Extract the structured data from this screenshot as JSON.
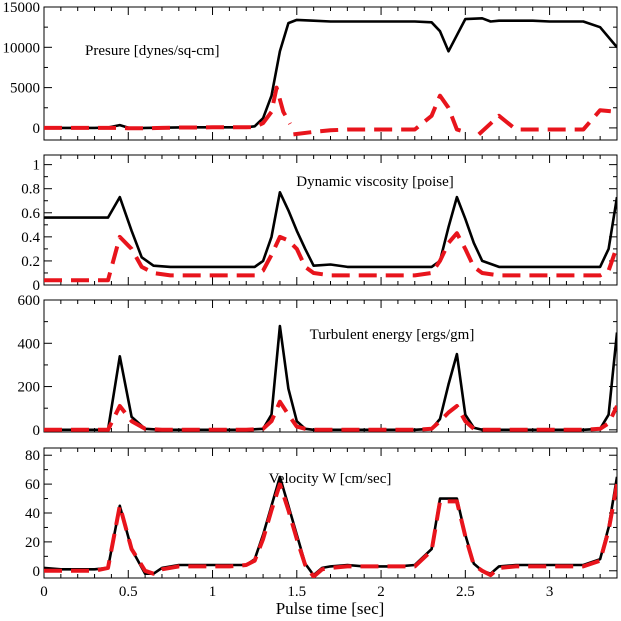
{
  "chart_data": {
    "type": "line",
    "xlabel": "Pulse time [sec]",
    "xlim": [
      0,
      3.4
    ],
    "x_ticks": [
      0,
      0.5,
      1,
      1.5,
      2,
      2.5,
      3
    ],
    "x_tick_labels": [
      "0",
      "0.5",
      "1",
      "1.5",
      "2",
      "2.5",
      "3"
    ],
    "series_styles": [
      {
        "name": "solid",
        "color": "#000000",
        "dash": "none"
      },
      {
        "name": "dashed",
        "color": "#e8141c",
        "dash": "18,9"
      }
    ],
    "panels": [
      {
        "title": "Presure [dynes/sq-cm]",
        "ylim": [
          -1500,
          15000
        ],
        "y_ticks": [
          0,
          5000,
          10000,
          15000
        ],
        "y_tick_labels": [
          "0",
          "5000",
          "10000",
          "15000"
        ],
        "series": [
          {
            "name": "solid",
            "x": [
              0,
              0.1,
              0.2,
              0.3,
              0.38,
              0.45,
              0.52,
              0.6,
              0.7,
              0.8,
              0.9,
              1.0,
              1.1,
              1.2,
              1.25,
              1.3,
              1.35,
              1.4,
              1.45,
              1.5,
              1.6,
              1.7,
              1.8,
              1.9,
              2.0,
              2.1,
              2.2,
              2.3,
              2.35,
              2.4,
              2.45,
              2.5,
              2.6,
              2.65,
              2.7,
              2.8,
              2.9,
              3.0,
              3.1,
              3.2,
              3.3,
              3.4
            ],
            "y": [
              0,
              0,
              0,
              0,
              50,
              350,
              -100,
              0,
              30,
              60,
              80,
              80,
              80,
              80,
              200,
              1200,
              4000,
              9500,
              13000,
              13400,
              13300,
              13200,
              13200,
              13200,
              13200,
              13200,
              13200,
              13100,
              12000,
              9500,
              11500,
              13500,
              13600,
              13200,
              13300,
              13300,
              13300,
              13200,
              13200,
              13200,
              12500,
              10000
            ]
          },
          {
            "name": "dashed",
            "x": [
              0,
              0.1,
              0.2,
              0.3,
              0.38,
              0.45,
              0.5,
              0.52,
              0.6,
              0.7,
              0.8,
              0.9,
              1.0,
              1.1,
              1.2,
              1.25,
              1.3,
              1.35,
              1.38,
              1.42,
              1.46
            ],
            "y": [
              0,
              0,
              0,
              0,
              0,
              0,
              -50,
              -50,
              -50,
              0,
              50,
              50,
              80,
              80,
              80,
              100,
              600,
              2000,
              5000,
              2000,
              500
            ]
          },
          {
            "name": "dashed",
            "x": [
              1.48,
              1.6,
              1.7,
              1.8,
              1.9,
              2.0,
              2.1,
              2.2,
              2.3,
              2.35,
              2.4,
              2.45,
              2.5
            ],
            "y": [
              -800,
              -500,
              -300,
              -200,
              -200,
              -200,
              -200,
              -200,
              1500,
              4000,
              2500,
              -200,
              -500
            ]
          },
          {
            "name": "dashed",
            "x": [
              2.58,
              2.7,
              2.8,
              2.9,
              3.0,
              3.1,
              3.2,
              3.3,
              3.4
            ],
            "y": [
              -800,
              1500,
              -200,
              -200,
              -200,
              -200,
              -200,
              2200,
              2000
            ]
          }
        ]
      },
      {
        "title": "Dynamic viscosity [poise]",
        "ylim": [
          0,
          1.08
        ],
        "y_ticks": [
          0,
          0.2,
          0.4,
          0.6,
          0.8,
          1
        ],
        "y_tick_labels": [
          "0",
          "0.2",
          "0.4",
          "0.6",
          "0.8",
          "1"
        ],
        "series": [
          {
            "name": "solid",
            "x": [
              0,
              0.1,
              0.2,
              0.3,
              0.38,
              0.45,
              0.52,
              0.58,
              0.65,
              0.75,
              0.85,
              0.95,
              1.05,
              1.15,
              1.25,
              1.3,
              1.35,
              1.4,
              1.45,
              1.5,
              1.55,
              1.6,
              1.7,
              1.8,
              1.9,
              2.0,
              2.1,
              2.2,
              2.3,
              2.35,
              2.4,
              2.45,
              2.5,
              2.55,
              2.6,
              2.7,
              2.8,
              2.9,
              3.0,
              3.1,
              3.2,
              3.3,
              3.35,
              3.4
            ],
            "y": [
              0.56,
              0.56,
              0.56,
              0.56,
              0.56,
              0.73,
              0.45,
              0.23,
              0.16,
              0.15,
              0.15,
              0.15,
              0.15,
              0.15,
              0.15,
              0.2,
              0.4,
              0.77,
              0.62,
              0.45,
              0.3,
              0.16,
              0.17,
              0.15,
              0.15,
              0.15,
              0.15,
              0.15,
              0.15,
              0.2,
              0.48,
              0.73,
              0.55,
              0.35,
              0.2,
              0.15,
              0.15,
              0.15,
              0.15,
              0.15,
              0.15,
              0.15,
              0.3,
              0.73
            ]
          },
          {
            "name": "dashed",
            "x": [
              0,
              0.1,
              0.2,
              0.3,
              0.38,
              0.45,
              0.52,
              0.58,
              0.65,
              0.75,
              0.85,
              0.95,
              1.05,
              1.15,
              1.25,
              1.3,
              1.35,
              1.4,
              1.45,
              1.5,
              1.55,
              1.6,
              1.7,
              1.8,
              1.9,
              2.0,
              2.1,
              2.2,
              2.3,
              2.35,
              2.4,
              2.45,
              2.5,
              2.55,
              2.6,
              2.7,
              2.8,
              2.9,
              3.0,
              3.1,
              3.2,
              3.3,
              3.35,
              3.4
            ],
            "y": [
              0.04,
              0.04,
              0.04,
              0.04,
              0.04,
              0.4,
              0.3,
              0.15,
              0.1,
              0.08,
              0.08,
              0.08,
              0.08,
              0.08,
              0.08,
              0.12,
              0.25,
              0.4,
              0.37,
              0.3,
              0.15,
              0.1,
              0.08,
              0.08,
              0.08,
              0.08,
              0.08,
              0.08,
              0.1,
              0.2,
              0.35,
              0.43,
              0.3,
              0.15,
              0.1,
              0.08,
              0.08,
              0.08,
              0.08,
              0.08,
              0.08,
              0.08,
              0.12,
              0.32
            ]
          }
        ]
      },
      {
        "title": "Turbulent energy [ergs/gm]",
        "ylim": [
          -10,
          600
        ],
        "y_ticks": [
          0,
          200,
          400,
          600
        ],
        "y_tick_labels": [
          "0",
          "200",
          "400",
          "600"
        ],
        "series": [
          {
            "name": "solid",
            "x": [
              0,
              0.1,
              0.2,
              0.3,
              0.38,
              0.45,
              0.52,
              0.6,
              0.7,
              0.8,
              0.9,
              1.0,
              1.1,
              1.2,
              1.3,
              1.35,
              1.4,
              1.45,
              1.5,
              1.55,
              1.6,
              1.7,
              1.8,
              1.9,
              2.0,
              2.1,
              2.2,
              2.3,
              2.35,
              2.4,
              2.45,
              2.5,
              2.55,
              2.6,
              2.7,
              2.8,
              2.9,
              3.0,
              3.1,
              3.2,
              3.3,
              3.35,
              3.4
            ],
            "y": [
              0,
              0,
              0,
              0,
              0,
              340,
              60,
              5,
              0,
              0,
              0,
              0,
              0,
              0,
              5,
              70,
              480,
              190,
              40,
              5,
              0,
              0,
              0,
              0,
              0,
              0,
              0,
              5,
              50,
              210,
              350,
              70,
              10,
              0,
              0,
              0,
              0,
              0,
              0,
              0,
              5,
              70,
              450
            ]
          },
          {
            "name": "dashed",
            "x": [
              0,
              0.1,
              0.2,
              0.3,
              0.38,
              0.45,
              0.52,
              0.6,
              0.7,
              0.8,
              0.9,
              1.0,
              1.1,
              1.2,
              1.3,
              1.35,
              1.4,
              1.45,
              1.5,
              1.55,
              1.6,
              1.7,
              1.8,
              1.9,
              2.0,
              2.1,
              2.2,
              2.3,
              2.35,
              2.4,
              2.45,
              2.5,
              2.55,
              2.6,
              2.7,
              2.8,
              2.9,
              3.0,
              3.1,
              3.2,
              3.3,
              3.35,
              3.4
            ],
            "y": [
              0,
              0,
              0,
              0,
              0,
              110,
              40,
              5,
              0,
              0,
              0,
              0,
              0,
              0,
              5,
              40,
              130,
              70,
              15,
              5,
              0,
              0,
              0,
              0,
              0,
              0,
              0,
              5,
              40,
              80,
              110,
              40,
              5,
              0,
              0,
              0,
              0,
              0,
              0,
              0,
              5,
              30,
              110
            ]
          }
        ]
      },
      {
        "title": "Velocity W [cm/sec]",
        "ylim": [
          -5,
          85
        ],
        "y_ticks": [
          0,
          20,
          40,
          60,
          80
        ],
        "y_tick_labels": [
          "0",
          "20",
          "40",
          "60",
          "80"
        ],
        "series": [
          {
            "name": "solid",
            "x": [
              0,
              0.1,
              0.2,
              0.3,
              0.38,
              0.45,
              0.52,
              0.6,
              0.65,
              0.7,
              0.8,
              0.9,
              1.0,
              1.1,
              1.2,
              1.25,
              1.3,
              1.35,
              1.4,
              1.45,
              1.5,
              1.55,
              1.6,
              1.65,
              1.7,
              1.8,
              1.9,
              2.0,
              2.1,
              2.2,
              2.3,
              2.35,
              2.4,
              2.45,
              2.5,
              2.55,
              2.6,
              2.65,
              2.7,
              2.8,
              2.9,
              3.0,
              3.1,
              3.2,
              3.3,
              3.35,
              3.4
            ],
            "y": [
              2,
              1,
              1,
              1,
              2,
              45,
              15,
              -2,
              -2,
              2,
              4,
              4,
              4,
              4,
              4,
              8,
              25,
              45,
              65,
              45,
              25,
              5,
              -3,
              2,
              3,
              4,
              3,
              3,
              3,
              4,
              15,
              50,
              50,
              50,
              25,
              5,
              0,
              -2,
              3,
              4,
              4,
              4,
              4,
              4,
              8,
              30,
              65
            ]
          },
          {
            "name": "dashed",
            "x": [
              0,
              0.1,
              0.2,
              0.3,
              0.38,
              0.45,
              0.52,
              0.6,
              0.65,
              0.7,
              0.8,
              0.9,
              1.0,
              1.1,
              1.2,
              1.25,
              1.3,
              1.35,
              1.4,
              1.45,
              1.5,
              1.55,
              1.6,
              1.65,
              1.7,
              1.8,
              1.9,
              2.0,
              2.1,
              2.2,
              2.3,
              2.35,
              2.4,
              2.45,
              2.5,
              2.55,
              2.6,
              2.65,
              2.7,
              2.8,
              2.9,
              3.0,
              3.1,
              3.2,
              3.3,
              3.35,
              3.4
            ],
            "y": [
              0,
              0,
              0,
              0,
              2,
              45,
              15,
              0,
              -2,
              1,
              3,
              3,
              3,
              3,
              4,
              7,
              22,
              42,
              60,
              42,
              22,
              4,
              -4,
              1,
              2,
              3,
              3,
              3,
              3,
              3,
              14,
              48,
              48,
              48,
              24,
              4,
              0,
              -3,
              2,
              3,
              3,
              3,
              3,
              3,
              7,
              28,
              60
            ]
          }
        ]
      }
    ]
  }
}
